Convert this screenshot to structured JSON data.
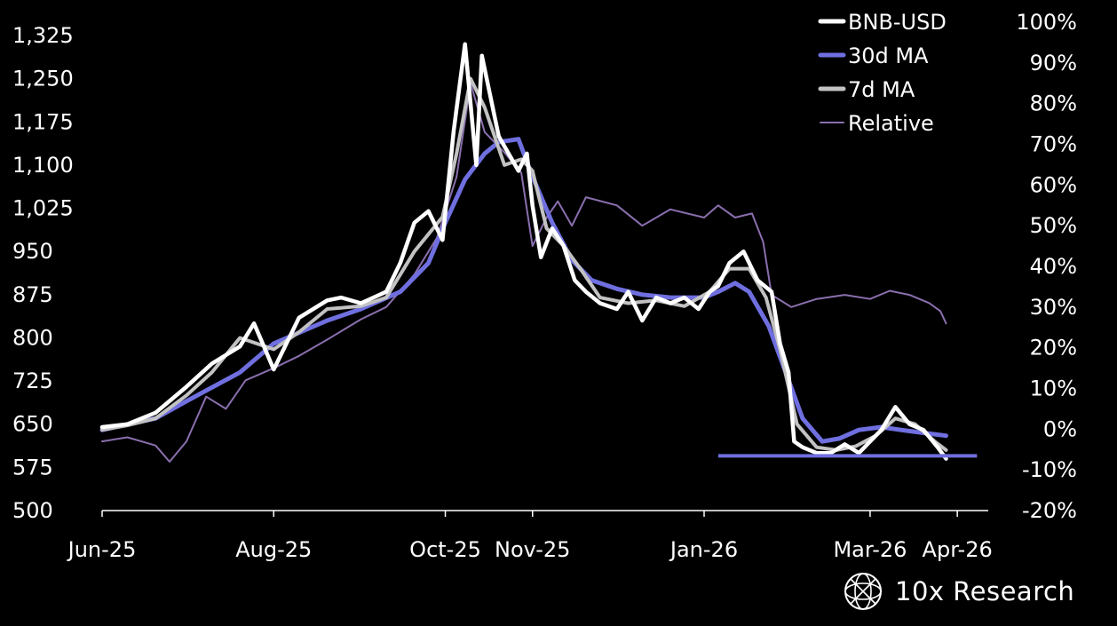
{
  "brand": {
    "name": "10x Research",
    "icon": "globe-logo-icon"
  },
  "colors": {
    "background": "#000000",
    "bnb": "#ffffff",
    "ma30": "#6f6fe0",
    "ma7": "#c2c2c2",
    "relative": "#8a6fae",
    "support": "#6f6fe0"
  },
  "chart_data": {
    "type": "line",
    "title": "",
    "legend": {
      "position": "top-right",
      "entries": [
        "BNB-USD",
        "30d MA",
        "7d MA",
        "Relative"
      ]
    },
    "x_ticks": [
      "Jun-25",
      "Aug-25",
      "Oct-25",
      "Nov-25",
      "Jan-26",
      "Mar-26",
      "Apr-26"
    ],
    "x_tick_dates": [
      "2025-06-01",
      "2025-08-01",
      "2025-10-01",
      "2025-11-01",
      "2026-01-01",
      "2026-03-01",
      "2026-04-01"
    ],
    "x_range": [
      "2025-06-01",
      "2026-04-12"
    ],
    "y_left": {
      "range": [
        500,
        1325
      ],
      "ticks": [
        "1,325",
        "1,250",
        "1,175",
        "1,100",
        "1,025",
        "950",
        "875",
        "800",
        "725",
        "650",
        "575",
        "500"
      ]
    },
    "y_right": {
      "range": [
        -20,
        100
      ],
      "unit": "%",
      "ticks": [
        "100%",
        "90%",
        "80%",
        "70%",
        "60%",
        "50%",
        "40%",
        "30%",
        "20%",
        "10%",
        "0%",
        "-10%",
        "-20%"
      ]
    },
    "grid": false,
    "support_line": {
      "value": 595,
      "x_start": "2026-01-06",
      "x_end": "2026-04-08"
    },
    "series": [
      {
        "name": "BNB-USD",
        "axis": "left",
        "x": [
          "2025-06-01",
          "2025-06-10",
          "2025-06-20",
          "2025-07-01",
          "2025-07-10",
          "2025-07-20",
          "2025-07-25",
          "2025-08-01",
          "2025-08-10",
          "2025-08-20",
          "2025-08-25",
          "2025-09-01",
          "2025-09-10",
          "2025-09-15",
          "2025-09-20",
          "2025-09-25",
          "2025-09-30",
          "2025-10-04",
          "2025-10-08",
          "2025-10-12",
          "2025-10-14",
          "2025-10-20",
          "2025-10-27",
          "2025-10-30",
          "2025-11-01",
          "2025-11-04",
          "2025-11-08",
          "2025-11-12",
          "2025-11-16",
          "2025-11-20",
          "2025-11-25",
          "2025-12-01",
          "2025-12-05",
          "2025-12-10",
          "2025-12-15",
          "2025-12-20",
          "2025-12-25",
          "2025-12-30",
          "2026-01-03",
          "2026-01-06",
          "2026-01-10",
          "2026-01-15",
          "2026-01-20",
          "2026-01-25",
          "2026-01-28",
          "2026-01-31",
          "2026-02-02",
          "2026-02-05",
          "2026-02-10",
          "2026-02-15",
          "2026-02-20",
          "2026-02-25",
          "2026-03-01",
          "2026-03-05",
          "2026-03-10",
          "2026-03-15",
          "2026-03-20",
          "2026-03-25",
          "2026-03-28"
        ],
        "y": [
          645,
          650,
          670,
          715,
          755,
          785,
          825,
          745,
          835,
          865,
          870,
          860,
          880,
          930,
          1000,
          1020,
          970,
          1160,
          1310,
          1100,
          1290,
          1150,
          1090,
          1120,
          1030,
          940,
          990,
          960,
          900,
          880,
          860,
          850,
          880,
          830,
          870,
          860,
          870,
          850,
          880,
          890,
          930,
          950,
          900,
          880,
          790,
          740,
          620,
          610,
          600,
          600,
          615,
          600,
          620,
          640,
          680,
          650,
          640,
          610,
          590
        ]
      },
      {
        "name": "30d MA",
        "axis": "left",
        "x": [
          "2025-06-01",
          "2025-06-20",
          "2025-07-01",
          "2025-07-20",
          "2025-08-01",
          "2025-08-20",
          "2025-09-01",
          "2025-09-15",
          "2025-09-25",
          "2025-10-01",
          "2025-10-08",
          "2025-10-15",
          "2025-10-20",
          "2025-10-27",
          "2025-11-01",
          "2025-11-08",
          "2025-11-15",
          "2025-11-22",
          "2025-12-01",
          "2025-12-10",
          "2025-12-20",
          "2026-01-01",
          "2026-01-06",
          "2026-01-12",
          "2026-01-17",
          "2026-01-24",
          "2026-01-30",
          "2026-02-05",
          "2026-02-12",
          "2026-02-18",
          "2026-02-25",
          "2026-03-05",
          "2026-03-12",
          "2026-03-20",
          "2026-03-28"
        ],
        "y": [
          640,
          660,
          690,
          740,
          790,
          830,
          850,
          880,
          930,
          1000,
          1075,
          1120,
          1140,
          1145,
          1080,
          1000,
          935,
          900,
          885,
          875,
          870,
          870,
          880,
          895,
          880,
          820,
          740,
          660,
          620,
          625,
          640,
          645,
          640,
          635,
          630
        ]
      },
      {
        "name": "7d MA",
        "axis": "left",
        "x": [
          "2025-06-01",
          "2025-06-10",
          "2025-06-20",
          "2025-07-01",
          "2025-07-10",
          "2025-07-20",
          "2025-08-01",
          "2025-08-10",
          "2025-08-20",
          "2025-09-01",
          "2025-09-10",
          "2025-09-20",
          "2025-09-30",
          "2025-10-05",
          "2025-10-10",
          "2025-10-15",
          "2025-10-22",
          "2025-10-28",
          "2025-11-01",
          "2025-11-06",
          "2025-11-12",
          "2025-11-18",
          "2025-11-25",
          "2025-12-05",
          "2025-12-15",
          "2025-12-25",
          "2026-01-03",
          "2026-01-10",
          "2026-01-17",
          "2026-01-23",
          "2026-01-28",
          "2026-02-03",
          "2026-02-10",
          "2026-02-17",
          "2026-02-24",
          "2026-03-03",
          "2026-03-10",
          "2026-03-17",
          "2026-03-24",
          "2026-03-28"
        ],
        "y": [
          640,
          648,
          660,
          700,
          740,
          800,
          780,
          810,
          850,
          855,
          870,
          950,
          1010,
          1120,
          1250,
          1200,
          1100,
          1110,
          1090,
          990,
          960,
          920,
          870,
          860,
          865,
          855,
          880,
          920,
          920,
          870,
          780,
          650,
          610,
          605,
          612,
          630,
          660,
          650,
          620,
          605
        ]
      },
      {
        "name": "Relative",
        "axis": "right",
        "x": [
          "2025-06-01",
          "2025-06-10",
          "2025-06-20",
          "2025-06-25",
          "2025-07-01",
          "2025-07-08",
          "2025-07-15",
          "2025-07-22",
          "2025-08-01",
          "2025-08-10",
          "2025-08-20",
          "2025-09-01",
          "2025-09-10",
          "2025-09-20",
          "2025-09-28",
          "2025-10-05",
          "2025-10-10",
          "2025-10-15",
          "2025-10-22",
          "2025-10-28",
          "2025-11-01",
          "2025-11-06",
          "2025-11-10",
          "2025-11-15",
          "2025-11-20",
          "2025-12-01",
          "2025-12-10",
          "2025-12-20",
          "2026-01-01",
          "2026-01-06",
          "2026-01-12",
          "2026-01-18",
          "2026-01-22",
          "2026-01-25",
          "2026-02-01",
          "2026-02-10",
          "2026-02-20",
          "2026-03-01",
          "2026-03-08",
          "2026-03-15",
          "2026-03-22",
          "2026-03-26",
          "2026-03-28"
        ],
        "y": [
          -3,
          -2,
          -4,
          -8,
          -3,
          8,
          5,
          12,
          15,
          18,
          22,
          27,
          30,
          38,
          47,
          62,
          85,
          73,
          68,
          63,
          45,
          52,
          56,
          50,
          57,
          55,
          50,
          54,
          52,
          55,
          52,
          53,
          46,
          33,
          30,
          32,
          33,
          32,
          34,
          33,
          31,
          29,
          26
        ]
      }
    ]
  }
}
